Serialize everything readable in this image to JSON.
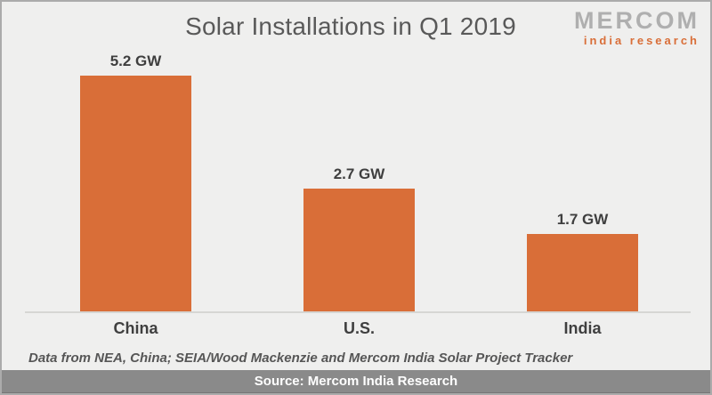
{
  "page": {
    "title": "Solar Installations in Q1 2019",
    "logo": {
      "primary": "MERCOM",
      "secondary": "india research"
    },
    "footnote": "Data from NEA, China; SEIA/Wood Mackenzie and Mercom India Solar Project Tracker",
    "source_bar": "Source: Mercom India Research"
  },
  "colors": {
    "background": "#EFEFEE",
    "bar": "#D96E38",
    "title_text": "#595959",
    "label_text": "#3F3F3F",
    "axis_line": "#D6D6D3",
    "footer_background": "#8A8A8A",
    "footer_text": "#FFFFFF",
    "logo_gray": "#AFAFAF",
    "logo_orange": "#D96E38"
  },
  "chart_data": {
    "type": "bar",
    "title": "Solar Installations in Q1 2019",
    "categories": [
      "China",
      "U.S.",
      "India"
    ],
    "values": [
      5.2,
      2.7,
      1.7
    ],
    "unit": "GW",
    "data_labels": [
      "5.2 GW",
      "2.7 GW",
      "1.7 GW"
    ],
    "xlabel": "",
    "ylabel": "",
    "ylim": [
      0,
      5.2
    ],
    "grid": false,
    "legend": false,
    "bar_color": "#D96E38",
    "source_note": "Data from NEA, China; SEIA/Wood Mackenzie and Mercom India Solar Project Tracker",
    "source": "Mercom India Research"
  }
}
